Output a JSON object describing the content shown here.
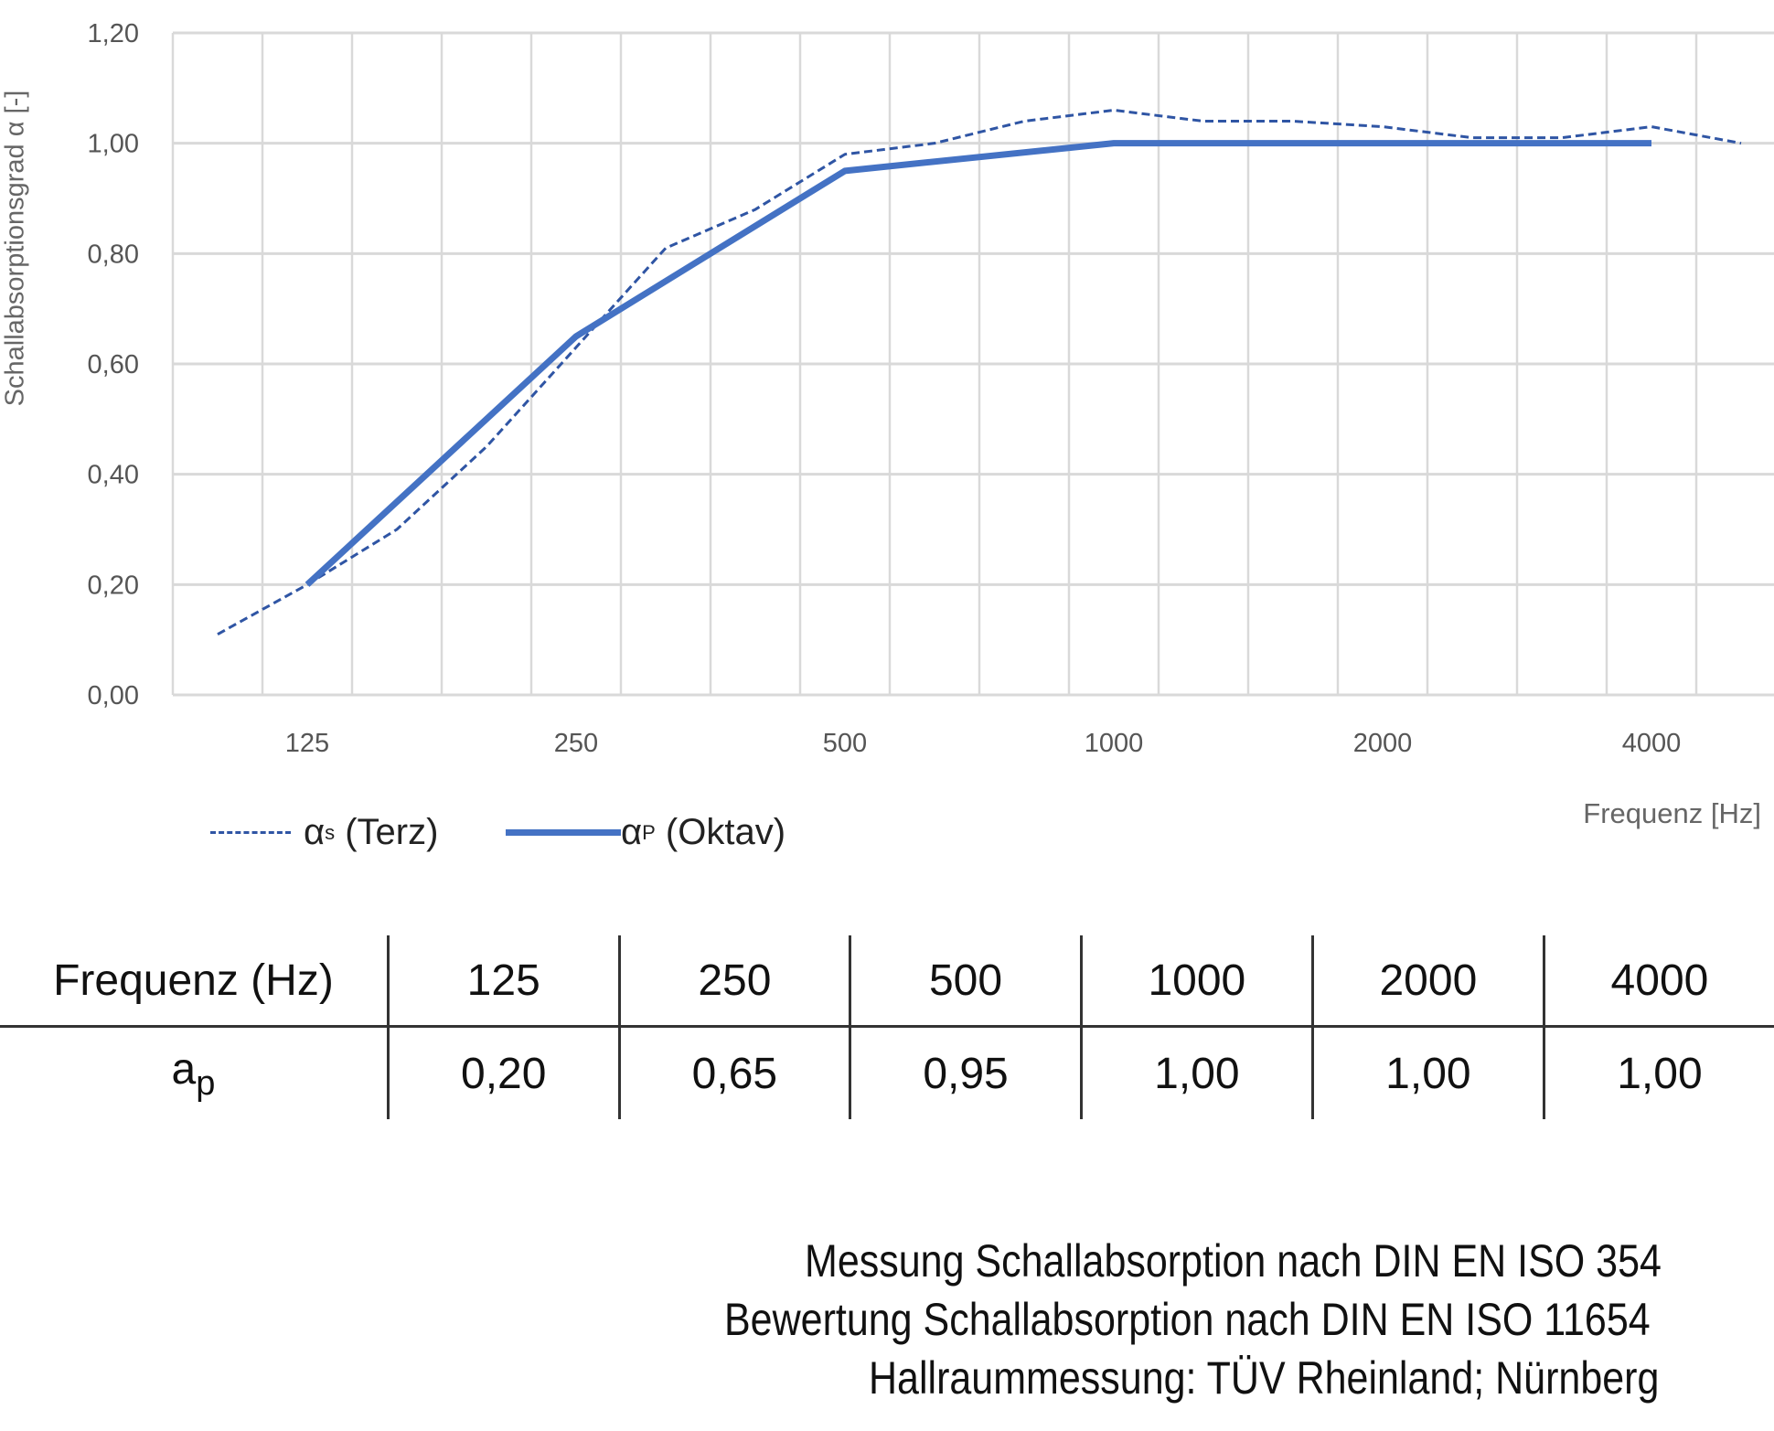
{
  "chart_data": {
    "type": "line",
    "title": "",
    "ylabel": "Schallabsorptionsgrad α [-]",
    "xlabel": "Frequenz [Hz]",
    "ylim": [
      0,
      1.2
    ],
    "yticks": [
      "0,00",
      "0,20",
      "0,40",
      "0,60",
      "0,80",
      "1,00",
      "1,20"
    ],
    "grid": true,
    "categories": [
      "100",
      "125",
      "160",
      "200",
      "250",
      "315",
      "400",
      "500",
      "630",
      "800",
      "1000",
      "1250",
      "1600",
      "2000",
      "2500",
      "3150",
      "4000",
      "5000"
    ],
    "xtick_labels": [
      "125",
      "250",
      "500",
      "1000",
      "2000",
      "4000"
    ],
    "legend_placement": "bottom-left",
    "series": [
      {
        "name": "αs (Terz)",
        "symbol": "α",
        "sub": "s",
        "suffix": " (Terz)",
        "style": "dashed",
        "color": "#2f55a4",
        "x": [
          "100",
          "125",
          "160",
          "200",
          "250",
          "315",
          "400",
          "500",
          "630",
          "800",
          "1000",
          "1250",
          "1600",
          "2000",
          "2500",
          "3150",
          "4000",
          "5000"
        ],
        "values": [
          0.11,
          0.2,
          0.3,
          0.45,
          0.63,
          0.81,
          0.88,
          0.98,
          1.0,
          1.04,
          1.06,
          1.04,
          1.04,
          1.03,
          1.01,
          1.01,
          1.03,
          1.0
        ]
      },
      {
        "name": "αp (Oktav)",
        "symbol": "α",
        "sub": "P",
        "suffix": " (Oktav)",
        "style": "solid",
        "color": "#4472c4",
        "x": [
          "125",
          "250",
          "500",
          "1000",
          "2000",
          "4000"
        ],
        "values": [
          0.2,
          0.65,
          0.95,
          1.0,
          1.0,
          1.0
        ]
      }
    ]
  },
  "table": {
    "header_label": "Frequenz (Hz)",
    "row_symbol": "a",
    "row_sub": "p",
    "frequencies": [
      "125",
      "250",
      "500",
      "1000",
      "2000",
      "4000"
    ],
    "values": [
      "0,20",
      "0,65",
      "0,95",
      "1,00",
      "1,00",
      "1,00"
    ]
  },
  "footer": [
    "Messung Schallabsorption nach DIN EN ISO 354",
    "Bewertung Schallabsorption nach DIN EN ISO 11654",
    "Hallraummessung: TÜV Rheinland; Nürnberg"
  ]
}
